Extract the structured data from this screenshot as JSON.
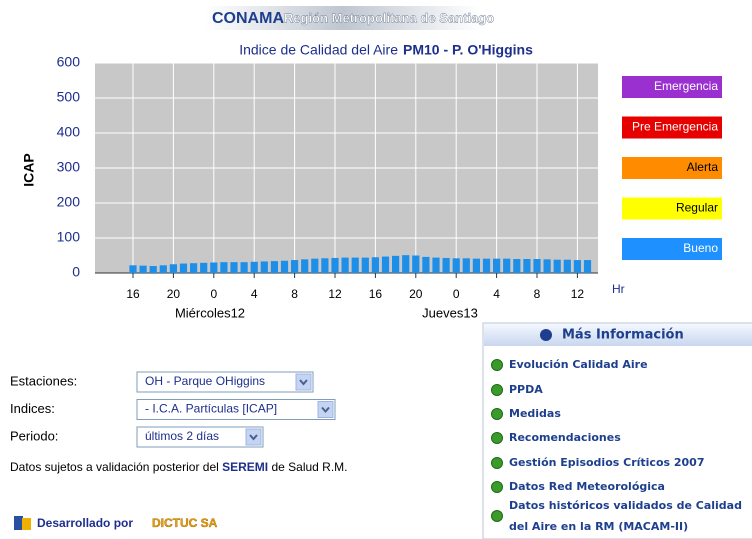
{
  "header": {
    "brand": "CONAMA",
    "region": "Región Metropolitana de Santiago"
  },
  "chart_data": {
    "type": "bar",
    "title": "Indice de Calidad del Aire",
    "title_station": "PM10 - P. O'Higgins",
    "ylabel": "ICAP",
    "xlabel": "Hr",
    "color": "#1e8fe8",
    "grid": true,
    "categories": [
      "16",
      null,
      null,
      null,
      "20",
      null,
      null,
      null,
      "0",
      null,
      null,
      null,
      "4",
      null,
      null,
      null,
      "8",
      null,
      null,
      null,
      "12",
      null,
      null,
      null,
      "16",
      null,
      null,
      null,
      "20",
      null,
      null,
      null,
      "0",
      null,
      null,
      null,
      "4",
      null,
      null,
      null,
      "8",
      null,
      null,
      null,
      "12",
      null
    ],
    "values": [
      22,
      21,
      20,
      22,
      25,
      27,
      28,
      29,
      30,
      31,
      31,
      31,
      32,
      33,
      34,
      35,
      37,
      39,
      41,
      42,
      43,
      44,
      44,
      44,
      45,
      47,
      49,
      51,
      50,
      46,
      44,
      43,
      42,
      42,
      41,
      41,
      41,
      41,
      40,
      40,
      40,
      39,
      38,
      38,
      37,
      37
    ],
    "day_labels": [
      "Miércoles12",
      "Jueves13"
    ],
    "ylim": [
      0,
      600
    ],
    "yticks": [
      0,
      100,
      200,
      300,
      400,
      500,
      600
    ],
    "levels": [
      {
        "label": "Emergencia",
        "color": "#9b30d0"
      },
      {
        "label": "Pre Emergencia",
        "color": "#e60000"
      },
      {
        "label": "Alerta",
        "color": "#ff8c00"
      },
      {
        "label": "Regular",
        "color": "#ffff00"
      },
      {
        "label": "Bueno",
        "color": "#1e90ff"
      }
    ]
  },
  "form": {
    "fields": [
      {
        "label": "Estaciones:",
        "value": "OH - Parque OHiggins"
      },
      {
        "label": "Indices:",
        "value": "- I.C.A. Partículas [ICAP]"
      },
      {
        "label": "Periodo:",
        "value": "últimos 2 días"
      }
    ],
    "note_prefix": "Datos sujetos a validación posterior del ",
    "note_highlight": "SEREMI",
    "note_suffix": " de Salud R.M."
  },
  "footer": {
    "prefix": "Desarrollado por",
    "company": "DICTUC SA"
  },
  "info": {
    "title": "Más Información",
    "links": [
      "Evolución Calidad Aire",
      "PPDA",
      "Medidas",
      "Recomendaciones",
      "Gestión Episodios Críticos 2007",
      "Datos Red Meteorológica",
      "Datos históricos validados de Calidad",
      "del Aire en la RM (MACAM-II)"
    ]
  }
}
